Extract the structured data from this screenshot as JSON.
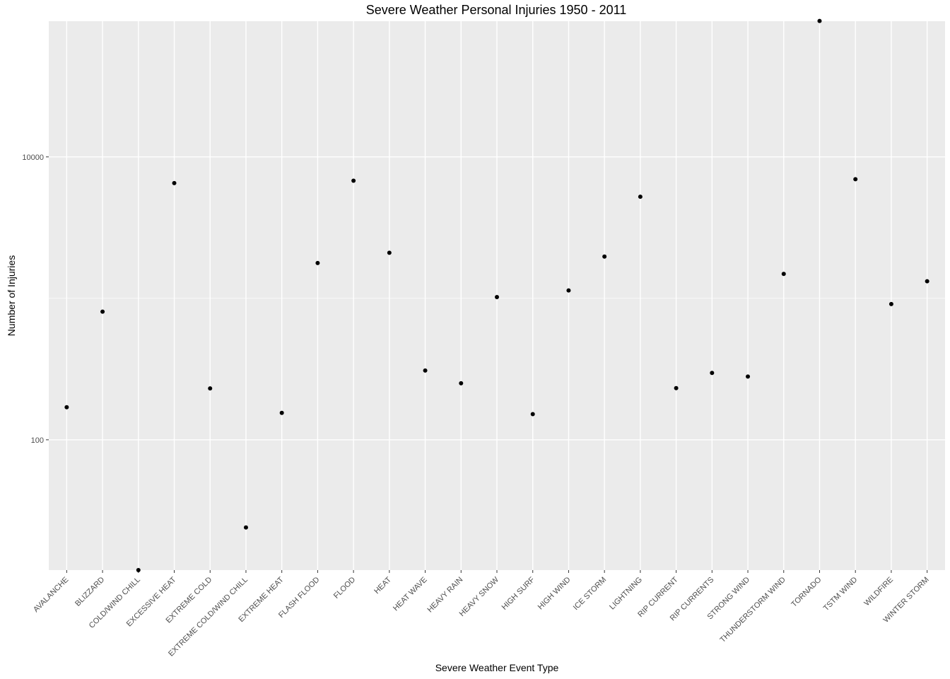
{
  "chart_data": {
    "type": "scatter",
    "title": "Severe Weather Personal Injuries 1950 - 2011",
    "xlabel": "Severe Weather Event Type",
    "ylabel": "Number of Injuries",
    "y_scale": "log10",
    "ylim": [
      12,
      91000
    ],
    "y_ticks": [
      {
        "value": 100,
        "label": "100"
      },
      {
        "value": 10000,
        "label": "10000"
      }
    ],
    "grid": true,
    "legend": "none",
    "point_color": "#000000",
    "panel_color": "#ebebeb",
    "categories": [
      "AVALANCHE",
      "BLIZZARD",
      "COLD/WIND CHILL",
      "EXCESSIVE HEAT",
      "EXTREME COLD",
      "EXTREME COLD/WIND CHILL",
      "EXTREME HEAT",
      "FLASH FLOOD",
      "FLOOD",
      "HEAT",
      "HEAT WAVE",
      "HEAVY RAIN",
      "HEAVY SNOW",
      "HIGH SURF",
      "HIGH WIND",
      "ICE STORM",
      "LIGHTNING",
      "RIP CURRENT",
      "RIP CURRENTS",
      "STRONG WIND",
      "THUNDERSTORM WIND",
      "TORNADO",
      "TSTM WIND",
      "WILDFIRE",
      "WINTER STORM"
    ],
    "values": [
      170,
      805,
      12,
      6525,
      231,
      24,
      155,
      1777,
      6789,
      2100,
      309,
      251,
      1021,
      152,
      1137,
      1975,
      5230,
      232,
      297,
      280,
      1488,
      91346,
      6957,
      911,
      1321
    ]
  }
}
